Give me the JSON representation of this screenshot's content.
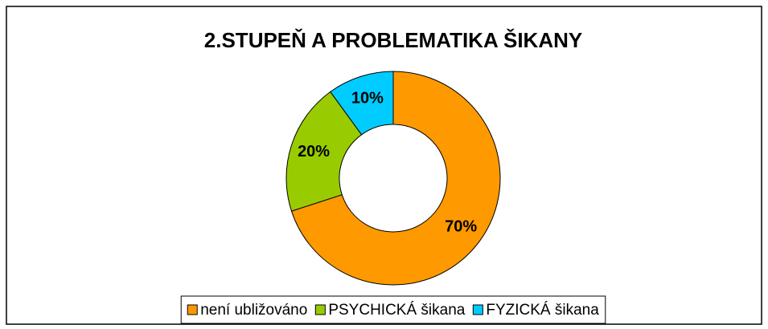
{
  "chart_data": {
    "type": "donut",
    "title": "2.STUPEŇ A PROBLEMATIKA ŠIKANY",
    "categories": [
      "není ubližováno",
      "PSYCHICKÁ šikana",
      "FYZICKÁ šikana"
    ],
    "values": [
      70,
      20,
      10
    ],
    "value_labels": [
      "70%",
      "20%",
      "10%"
    ],
    "colors": [
      "#FF9900",
      "#99CC00",
      "#00CCFF"
    ],
    "legend": "bottom"
  }
}
